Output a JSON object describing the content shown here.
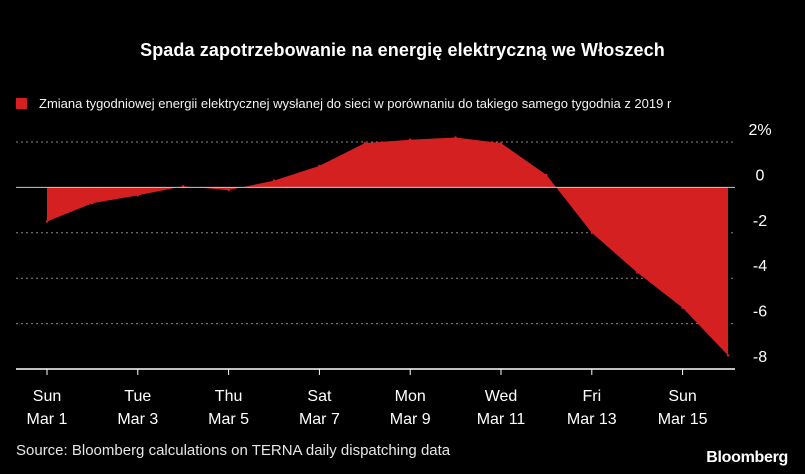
{
  "chart_data": {
    "type": "area",
    "title": "Spada zapotrzebowanie na energię elektryczną we Włoszech",
    "legend": "Zmiana tygodniowej energii elektrycznej wysłanej do sieci w porównaniu do takiego samego tygodnia z 2019 r",
    "ylim": [
      -8,
      2
    ],
    "yticks": [
      {
        "value": 2,
        "label": "2%"
      },
      {
        "value": 0,
        "label": "0"
      },
      {
        "value": -2,
        "label": "-2"
      },
      {
        "value": -4,
        "label": "-4"
      },
      {
        "value": -6,
        "label": "-6"
      },
      {
        "value": -8,
        "label": "-8"
      }
    ],
    "x": [
      1,
      2,
      3,
      4,
      5,
      6,
      7,
      8,
      9,
      10,
      11,
      12,
      13,
      14,
      15,
      16
    ],
    "values": [
      -1.5,
      -0.7,
      -0.35,
      0.05,
      -0.12,
      0.3,
      0.95,
      1.95,
      2.1,
      2.2,
      1.95,
      0.55,
      -2.0,
      -3.75,
      -5.3,
      -7.4
    ],
    "xticks": [
      {
        "x": 1,
        "day": "Sun",
        "date": "Mar 1"
      },
      {
        "x": 3,
        "day": "Tue",
        "date": "Mar 3"
      },
      {
        "x": 5,
        "day": "Thu",
        "date": "Mar 5"
      },
      {
        "x": 7,
        "day": "Sat",
        "date": "Mar 7"
      },
      {
        "x": 9,
        "day": "Mon",
        "date": "Mar 9"
      },
      {
        "x": 11,
        "day": "Wed",
        "date": "Mar 11"
      },
      {
        "x": 13,
        "day": "Fri",
        "date": "Mar 13"
      },
      {
        "x": 15,
        "day": "Sun",
        "date": "Mar 15"
      }
    ],
    "colors": {
      "fill": "#d42020",
      "grid": "#8a8a8a",
      "zero": "#c8c8c8"
    }
  },
  "source": "Source: Bloomberg calculations on TERNA daily dispatching data",
  "brand": "Bloomberg"
}
